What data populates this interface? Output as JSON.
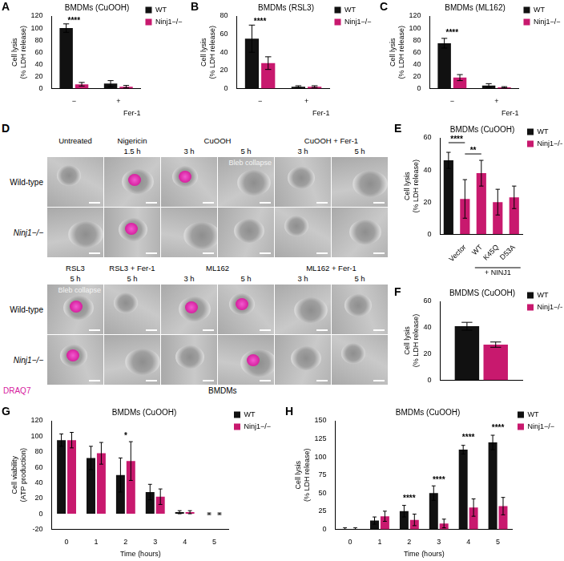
{
  "chart_data": [
    {
      "panel": "A",
      "type": "bar",
      "title": "BMDMs (CuOOH)",
      "ylabel": [
        "Cell lysis",
        "(% LDH release)"
      ],
      "xlabel": "Fer-1",
      "categories": [
        "−",
        "+"
      ],
      "series": [
        {
          "name": "WT",
          "color": "#111111",
          "values": [
            100,
            8
          ],
          "errors": [
            7,
            5
          ]
        },
        {
          "name": "Ninj1−/−",
          "color": "#c8196e",
          "values": [
            7,
            3
          ],
          "errors": [
            3,
            2
          ]
        }
      ],
      "ylim": [
        0,
        120
      ],
      "yticks": [
        0,
        20,
        40,
        60,
        80,
        100,
        120
      ],
      "grid": false,
      "legend": "right",
      "annotations": [
        {
          "text": "****",
          "category": 0,
          "y": 112
        }
      ]
    },
    {
      "panel": "B",
      "type": "bar",
      "title": "BMDMs (RSL3)",
      "ylabel": [
        "Cell lysis",
        "(% LDH release)"
      ],
      "xlabel": "Fer-1",
      "categories": [
        "−",
        "+"
      ],
      "series": [
        {
          "name": "WT",
          "color": "#111111",
          "values": [
            55,
            2
          ],
          "errors": [
            15,
            1
          ]
        },
        {
          "name": "Ninj1−/−",
          "color": "#c8196e",
          "values": [
            28,
            2
          ],
          "errors": [
            7,
            1
          ]
        }
      ],
      "ylim": [
        0,
        80
      ],
      "yticks": [
        0,
        20,
        40,
        60,
        80
      ],
      "grid": false,
      "legend": "right",
      "annotations": [
        {
          "text": "****",
          "category": 0,
          "y": 74
        }
      ]
    },
    {
      "panel": "C",
      "type": "bar",
      "title": "BMDMs (ML162)",
      "ylabel": [
        "Cell lysis",
        "(% LDH release)"
      ],
      "xlabel": "Fer-1",
      "categories": [
        "−",
        "+"
      ],
      "series": [
        {
          "name": "WT",
          "color": "#111111",
          "values": [
            75,
            5
          ],
          "errors": [
            8,
            3
          ]
        },
        {
          "name": "Ninj1−/−",
          "color": "#c8196e",
          "values": [
            18,
            2
          ],
          "errors": [
            5,
            1
          ]
        }
      ],
      "ylim": [
        0,
        120
      ],
      "yticks": [
        0,
        20,
        40,
        60,
        80,
        100,
        120
      ],
      "grid": false,
      "legend": "right",
      "annotations": [
        {
          "text": "****",
          "category": 0,
          "y": 92
        }
      ]
    },
    {
      "panel": "E",
      "type": "bar",
      "title": "BMDMs (CuOOH)",
      "ylabel": [
        "Cell lysis",
        "(% LDH release)"
      ],
      "categories": [
        null,
        "Vector",
        "WT",
        "K45Q",
        "D53A"
      ],
      "series": [
        {
          "name": "WT",
          "color": "#111111",
          "values": [
            46,
            null,
            null,
            null,
            null
          ],
          "errors": [
            5,
            null,
            null,
            null,
            null
          ]
        },
        {
          "name": "Ninj1−/−",
          "color": "#c8196e",
          "values": [
            null,
            22,
            38,
            20,
            23
          ],
          "errors": [
            null,
            12,
            8,
            8,
            7
          ]
        }
      ],
      "ylim": [
        0,
        60
      ],
      "yticks": [
        0,
        20,
        40,
        60
      ],
      "grid": false,
      "legend": "right",
      "annotations": [
        {
          "text": "****",
          "from": 0,
          "to": 1,
          "y": 57
        },
        {
          "text": "**",
          "from": 1,
          "to": 2,
          "y": 50
        },
        {
          "text": "+ NINJ1",
          "from": 2,
          "to": 4
        }
      ]
    },
    {
      "panel": "F",
      "type": "bar",
      "title": "BMDMS (CuOOH)",
      "ylabel": [
        "Cell lysis",
        "(% LDH release)"
      ],
      "categories": [
        null
      ],
      "series": [
        {
          "name": "WT",
          "color": "#111111",
          "values": [
            41
          ],
          "errors": [
            3
          ]
        },
        {
          "name": "Ninj1−/−",
          "color": "#c8196e",
          "values": [
            27
          ],
          "errors": [
            2
          ]
        }
      ],
      "ylim": [
        0,
        60
      ],
      "yticks": [
        0,
        20,
        40,
        60
      ],
      "grid": false,
      "legend": "right",
      "annotations": []
    },
    {
      "panel": "G",
      "type": "bar",
      "title": "BMDMs (CuOOH)",
      "ylabel": [
        "Cell viability",
        "(ATP production)"
      ],
      "xlabel": "Time (hours)",
      "categories": [
        "0",
        "1",
        "2",
        "3",
        "4",
        "5"
      ],
      "series": [
        {
          "name": "WT",
          "color": "#111111",
          "values": [
            95,
            72,
            50,
            28,
            2,
            0
          ],
          "errors": [
            8,
            15,
            22,
            10,
            2,
            1
          ]
        },
        {
          "name": "Ninj1−/−",
          "color": "#c8196e",
          "values": [
            95,
            78,
            68,
            22,
            2,
            0
          ],
          "errors": [
            10,
            14,
            25,
            10,
            2,
            1
          ]
        }
      ],
      "ylim": [
        -20,
        120
      ],
      "yticks": [
        -20,
        0,
        20,
        40,
        60,
        80,
        100,
        120
      ],
      "grid": false,
      "legend": "right",
      "annotations": [
        {
          "text": "*",
          "category": 2,
          "y": 100
        }
      ]
    },
    {
      "panel": "H",
      "type": "bar",
      "title": "BMDMs (CuOOH)",
      "ylabel": [
        "Cell lysis",
        "(% LDH release)"
      ],
      "xlabel": "Time (hours)",
      "categories": [
        "0",
        "1",
        "2",
        "3",
        "4",
        "5"
      ],
      "series": [
        {
          "name": "WT",
          "color": "#111111",
          "values": [
            0,
            12,
            25,
            50,
            110,
            120
          ],
          "errors": [
            2,
            5,
            8,
            10,
            6,
            10
          ]
        },
        {
          "name": "Ninj1−/−",
          "color": "#c8196e",
          "values": [
            0,
            18,
            13,
            8,
            30,
            32
          ],
          "errors": [
            2,
            7,
            8,
            6,
            12,
            12
          ]
        }
      ],
      "ylim": [
        0,
        150
      ],
      "yticks": [
        0,
        25,
        50,
        75,
        100,
        125,
        150
      ],
      "grid": false,
      "legend": "right",
      "annotations": [
        {
          "text": "****",
          "category": 2,
          "y": 42
        },
        {
          "text": "****",
          "category": 3,
          "y": 68
        },
        {
          "text": "****",
          "category": 4,
          "y": 126
        },
        {
          "text": "****",
          "category": 5,
          "y": 140
        }
      ]
    }
  ],
  "image_panel": {
    "panel": "D",
    "rows": [
      "Wild-type",
      "Ninj1−/−"
    ],
    "blocks": [
      {
        "groups": [
          {
            "label": "Untreated",
            "times": [
              null
            ]
          },
          {
            "label": "Nigericin",
            "times": [
              "1.5 h"
            ]
          },
          {
            "label": "CuOOH",
            "times": [
              "3 h",
              "5 h"
            ]
          },
          {
            "label": "CuOOH + Fer-1",
            "times": [
              "3 h",
              "5 h"
            ]
          }
        ],
        "draq7_positive": [
          [
            false,
            true,
            true,
            false,
            false,
            false
          ],
          [
            false,
            true,
            false,
            false,
            false,
            false
          ]
        ],
        "notes": [
          {
            "text": "Bleb collapse",
            "row": 0,
            "column": 3
          }
        ]
      },
      {
        "groups": [
          {
            "label": "RSL3",
            "times": [
              "5 h"
            ]
          },
          {
            "label": "RSL3 + Fer-1",
            "times": [
              "5 h"
            ]
          },
          {
            "label": "ML162",
            "times": [
              "3 h",
              "5 h"
            ]
          },
          {
            "label": "ML162 + Fer-1",
            "times": [
              "3 h",
              "5 h"
            ]
          }
        ],
        "draq7_positive": [
          [
            true,
            false,
            true,
            true,
            false,
            false
          ],
          [
            true,
            false,
            false,
            true,
            false,
            false
          ]
        ],
        "notes": [
          {
            "text": "Bleb collapse",
            "row": 0,
            "column": 0
          }
        ]
      }
    ],
    "stain": "DRAQ7",
    "cells": "BMDMs"
  }
}
